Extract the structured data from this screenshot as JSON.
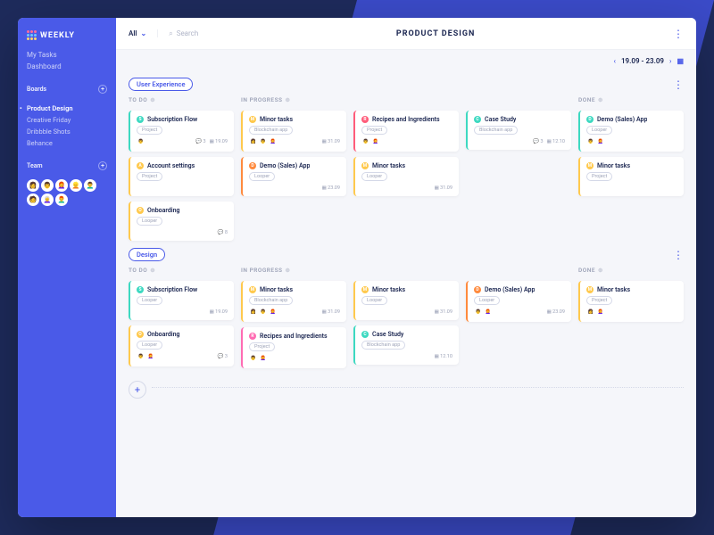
{
  "app_name": "WEEKLY",
  "logo_dot_colors": [
    "#ff6b9d",
    "#ff6b9d",
    "#ff6b9d",
    "#6bc9ff",
    "#6bc9ff",
    "#6bc9ff",
    "#ffd76b",
    "#ffd76b",
    "#ffd76b"
  ],
  "sidebar": {
    "nav": [
      "My Tasks",
      "Dashboard"
    ],
    "boards_label": "Boards",
    "boards": [
      {
        "label": "Product Design",
        "active": true
      },
      {
        "label": "Creative Friday",
        "active": false
      },
      {
        "label": "Dribbble Shots",
        "active": false
      },
      {
        "label": "Behance",
        "active": false
      }
    ],
    "team_label": "Team",
    "team_emojis": [
      "👩",
      "👨",
      "👩‍🦰",
      "👱",
      "👨‍🦱",
      "🧑",
      "👩‍🦳",
      "👨‍🦰"
    ]
  },
  "topbar": {
    "filter": "All",
    "search_placeholder": "Search",
    "title": "PRODUCT DESIGN"
  },
  "date_range": "19.09 - 23.09",
  "column_labels": [
    "TO DO",
    "IN PROGRESS",
    "",
    "DONE"
  ],
  "colors": {
    "teal": "#3dd9c1",
    "yellow": "#ffc94d",
    "orange": "#ff8a3d",
    "red": "#ff5c7a",
    "blue": "#4a9eff",
    "green": "#5cd98a",
    "purple": "#a05cff",
    "pink": "#ff6bb3"
  },
  "swimlanes": [
    {
      "name": "User Experience",
      "columns": [
        [
          {
            "c": "teal",
            "t": "Subscription Flow",
            "tag": "Project",
            "av": [
              "👨"
            ],
            "com": 3,
            "date": "19.09"
          },
          {
            "c": "yellow",
            "t": "Account settings",
            "tag": "Project",
            "av": []
          },
          {
            "c": "yellow",
            "t": "Onboarding",
            "tag": "Looper",
            "av": [],
            "com": 8
          }
        ],
        [
          {
            "c": "yellow",
            "t": "Minor tasks",
            "tag": "Blockchain app",
            "av": [
              "👩",
              "👨",
              "👩‍🦰"
            ],
            "date": "31.09"
          },
          {
            "c": "orange",
            "t": "Demo (Sales) App",
            "tag": "Looper",
            "av": [],
            "date": "23.09"
          }
        ],
        [
          {
            "c": "red",
            "t": "Recipes and Ingredients",
            "tag": "Project",
            "av": [
              "👨",
              "👩‍🦰"
            ]
          },
          {
            "c": "yellow",
            "t": "Minor tasks",
            "tag": "Looper",
            "av": [],
            "date": "31.09"
          }
        ],
        [
          {
            "c": "teal",
            "t": "Case Study",
            "tag": "Blockchain app",
            "av": [],
            "com": 3,
            "date": "12.10"
          }
        ],
        [
          {
            "c": "teal",
            "t": "Demo (Sales) App",
            "tag": "Looper",
            "av": [
              "👨",
              "👩‍🦰"
            ]
          },
          {
            "c": "yellow",
            "t": "Minor tasks",
            "tag": "Project",
            "av": []
          }
        ]
      ]
    },
    {
      "name": "Design",
      "columns": [
        [
          {
            "c": "teal",
            "t": "Subscription Flow",
            "tag": "Looper",
            "av": [],
            "date": "19.09"
          },
          {
            "c": "yellow",
            "t": "Onboarding",
            "tag": "Looper",
            "av": [
              "👨",
              "👩‍🦰"
            ],
            "com": 3
          }
        ],
        [
          {
            "c": "yellow",
            "t": "Minor tasks",
            "tag": "Blockchain app",
            "av": [
              "👩",
              "👨",
              "👩‍🦰"
            ],
            "date": "31.09"
          },
          {
            "c": "pink",
            "t": "Recipes and Ingredients",
            "tag": "Project",
            "av": [
              "👨",
              "👩‍🦰"
            ]
          }
        ],
        [
          {
            "c": "yellow",
            "t": "Minor tasks",
            "tag": "Looper",
            "av": [],
            "date": "31.09"
          },
          {
            "c": "teal",
            "t": "Case Study",
            "tag": "Blockchain app",
            "av": [],
            "date": "12.10"
          }
        ],
        [
          {
            "c": "orange",
            "t": "Demo (Sales) App",
            "tag": "Looper",
            "av": [
              "👨",
              "👩‍🦰"
            ],
            "date": "23.09"
          }
        ],
        [
          {
            "c": "yellow",
            "t": "Minor tasks",
            "tag": "Project",
            "av": [
              "👩",
              "👩‍🦰"
            ]
          }
        ]
      ]
    }
  ]
}
